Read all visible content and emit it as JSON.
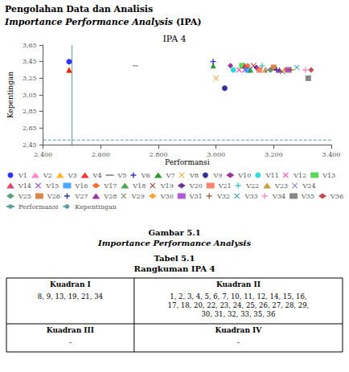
{
  "chart_data": {
    "type": "scatter",
    "heading1": "Pengolahan Data dan Analisis",
    "heading2_italic": "Importance Performance Analysis",
    "heading2_bold": " (IPA)",
    "title": "IPA 4",
    "x_label": "Performansi",
    "y_label": "Kepentingan",
    "xlim": [
      2400,
      3400
    ],
    "ylim": [
      2.45,
      3.65
    ],
    "xticks": [
      {
        "value": 2400,
        "label": "2.400"
      },
      {
        "value": 2600,
        "label": "2.600"
      },
      {
        "value": 2800,
        "label": "2.800"
      },
      {
        "value": 3000,
        "label": "3.000"
      },
      {
        "value": 3200,
        "label": "3.200"
      },
      {
        "value": 3400,
        "label": "3.400"
      }
    ],
    "yticks": [
      {
        "value": 2.45,
        "label": "2,45"
      },
      {
        "value": 2.65,
        "label": "2,65"
      },
      {
        "value": 2.85,
        "label": "2,85"
      },
      {
        "value": 3.05,
        "label": "3,05"
      },
      {
        "value": 3.25,
        "label": "3,25"
      },
      {
        "value": 3.45,
        "label": "3,45"
      },
      {
        "value": 3.65,
        "label": "3,65"
      }
    ],
    "grid": false,
    "legend": "bottom",
    "series": [
      {
        "name": "V1",
        "color": "#0000ff",
        "marker": "circle",
        "x": [
          2490
        ],
        "values": [
          3.45
        ]
      },
      {
        "name": "V2",
        "color": "#ff69b4",
        "marker": "triangle",
        "x": [
          2490
        ],
        "values": [
          3.35
        ]
      },
      {
        "name": "V3",
        "color": "#ffa500",
        "marker": "triangle",
        "x": [
          2490
        ],
        "values": [
          3.35
        ]
      },
      {
        "name": "V4",
        "color": "#ff0000",
        "marker": "triangle",
        "x": [
          2490
        ],
        "values": [
          3.35
        ]
      },
      {
        "name": "V5",
        "color": "#808080",
        "marker": "hline",
        "x": [
          2720
        ],
        "values": [
          3.4
        ]
      },
      {
        "name": "V6",
        "color": "#0000cd",
        "marker": "plus",
        "x": [
          2990
        ],
        "values": [
          3.45
        ]
      },
      {
        "name": "V7",
        "color": "#008000",
        "marker": "triangle",
        "x": [
          2990
        ],
        "values": [
          3.4
        ]
      },
      {
        "name": "V8",
        "color": "#ff8c00",
        "marker": "cross",
        "x": [
          3000
        ],
        "values": [
          3.25
        ]
      },
      {
        "name": "V9",
        "color": "#000080",
        "marker": "circle",
        "x": [
          3030
        ],
        "values": [
          3.13
        ]
      },
      {
        "name": "V10",
        "color": "#800080",
        "marker": "diamond",
        "x": [
          3050
        ],
        "values": [
          3.4
        ]
      },
      {
        "name": "V11",
        "color": "#00ced1",
        "marker": "circle",
        "x": [
          3060
        ],
        "values": [
          3.35
        ]
      },
      {
        "name": "V12",
        "color": "#ff1493",
        "marker": "cross",
        "x": [
          3080
        ],
        "values": [
          3.35
        ]
      },
      {
        "name": "V13",
        "color": "#32cd32",
        "marker": "square",
        "x": [
          3090
        ],
        "values": [
          3.4
        ]
      },
      {
        "name": "V14",
        "color": "#dc143c",
        "marker": "triangle",
        "x": [
          3100
        ],
        "values": [
          3.4
        ]
      },
      {
        "name": "V15",
        "color": "#9400d3",
        "marker": "cross",
        "x": [
          3100
        ],
        "values": [
          3.35
        ]
      },
      {
        "name": "V16",
        "color": "#1e90ff",
        "marker": "square",
        "x": [
          3110
        ],
        "values": [
          3.35
        ]
      },
      {
        "name": "V17",
        "color": "#ff4500",
        "marker": "diamond",
        "x": [
          3110
        ],
        "values": [
          3.4
        ]
      },
      {
        "name": "V18",
        "color": "#228b22",
        "marker": "triangle",
        "x": [
          3120
        ],
        "values": [
          3.35
        ]
      },
      {
        "name": "V19",
        "color": "#8b0000",
        "marker": "cross",
        "x": [
          3130
        ],
        "values": [
          3.4
        ]
      },
      {
        "name": "V20",
        "color": "#4b0082",
        "marker": "diamond",
        "x": [
          3140
        ],
        "values": [
          3.38
        ]
      },
      {
        "name": "V21",
        "color": "#ff6347",
        "marker": "square",
        "x": [
          3150
        ],
        "values": [
          3.35
        ]
      },
      {
        "name": "V22",
        "color": "#20b2aa",
        "marker": "plus",
        "x": [
          3160
        ],
        "values": [
          3.4
        ]
      },
      {
        "name": "V23",
        "color": "#b8860b",
        "marker": "triangle",
        "x": [
          3170
        ],
        "values": [
          3.35
        ]
      },
      {
        "name": "V24",
        "color": "#6a5acd",
        "marker": "cross",
        "x": [
          3180
        ],
        "values": [
          3.35
        ]
      },
      {
        "name": "V25",
        "color": "#2e8b57",
        "marker": "diamond",
        "x": [
          3190
        ],
        "values": [
          3.35
        ]
      },
      {
        "name": "V26",
        "color": "#d2691e",
        "marker": "square",
        "x": [
          3200
        ],
        "values": [
          3.38
        ]
      },
      {
        "name": "V27",
        "color": "#00008b",
        "marker": "plus",
        "x": [
          3210
        ],
        "values": [
          3.35
        ]
      },
      {
        "name": "V28",
        "color": "#8b008b",
        "marker": "triangle",
        "x": [
          3220
        ],
        "values": [
          3.35
        ]
      },
      {
        "name": "V29",
        "color": "#556b2f",
        "marker": "cross",
        "x": [
          3230
        ],
        "values": [
          3.33
        ]
      },
      {
        "name": "V30",
        "color": "#ff8c00",
        "marker": "diamond",
        "x": [
          3240
        ],
        "values": [
          3.35
        ]
      },
      {
        "name": "V31",
        "color": "#9932cc",
        "marker": "square",
        "x": [
          3250
        ],
        "values": [
          3.35
        ]
      },
      {
        "name": "V32",
        "color": "#8b4513",
        "marker": "plus",
        "x": [
          3260
        ],
        "values": [
          3.35
        ]
      },
      {
        "name": "V33",
        "color": "#008b8b",
        "marker": "cross",
        "x": [
          3280
        ],
        "values": [
          3.38
        ]
      },
      {
        "name": "V34",
        "color": "#ff69b4",
        "marker": "plus",
        "x": [
          3310
        ],
        "values": [
          3.35
        ]
      },
      {
        "name": "V35",
        "color": "#696969",
        "marker": "square",
        "x": [
          3320
        ],
        "values": [
          3.25
        ]
      },
      {
        "name": "V36",
        "color": "#b22222",
        "marker": "diamond",
        "x": [
          3330
        ],
        "values": [
          3.35
        ]
      }
    ],
    "reference_lines": [
      {
        "name": "Performansi",
        "axis": "x",
        "value": 2500,
        "color": "#5f9ea0",
        "line_style": "solid"
      },
      {
        "name": "Kepentingan",
        "axis": "y",
        "value": 2.505,
        "color": "#5f9ea0",
        "line_style": "dashed"
      }
    ],
    "caption": [
      "Gambar 5.1",
      "Importance Performance Analysis"
    ],
    "table_title": [
      "Tabel 5.1",
      "Rangkuman IPA 4"
    ],
    "table": [
      [
        {
          "header": "Kuadran I",
          "items": "8, 9, 13, 19, 21, 34"
        },
        {
          "header": "Kuadran II",
          "items": "1, 2, 3, 4, 5, 6, 7, 10, 11, 12, 14, 15, 16,\n17, 18, 20, 22, 23, 24, 25, 26, 27, 28, 29,\n30, 31, 32, 33, 35, 36"
        }
      ],
      [
        {
          "header": "Kuadran III",
          "items": "-"
        },
        {
          "header": "Kuadran IV",
          "items": "-"
        }
      ]
    ]
  }
}
